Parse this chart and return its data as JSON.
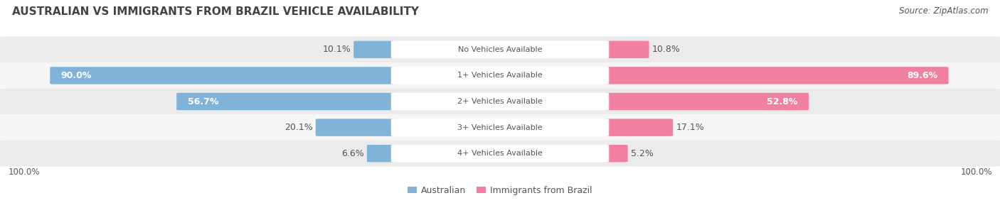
{
  "title": "Australian vs Immigrants from Brazil Vehicle Availability",
  "source": "Source: ZipAtlas.com",
  "categories": [
    "No Vehicles Available",
    "1+ Vehicles Available",
    "2+ Vehicles Available",
    "3+ Vehicles Available",
    "4+ Vehicles Available"
  ],
  "australian_values": [
    10.1,
    90.0,
    56.7,
    20.1,
    6.6
  ],
  "brazil_values": [
    10.8,
    89.6,
    52.8,
    17.1,
    5.2
  ],
  "australian_color": "#7fb3d8",
  "brazil_color": "#f07fa0",
  "australian_color_light": "#aecde8",
  "brazil_color_light": "#f8b8c8",
  "row_bg_odd": "#ebebeb",
  "row_bg_even": "#f5f5f5",
  "max_value": 100.0,
  "title_fontsize": 11,
  "label_fontsize": 9,
  "cat_fontsize": 8,
  "legend_fontsize": 9,
  "source_fontsize": 8.5,
  "title_color": "#444444",
  "text_color": "#555555",
  "background_color": "#ffffff",
  "white_label_threshold": 0.12
}
